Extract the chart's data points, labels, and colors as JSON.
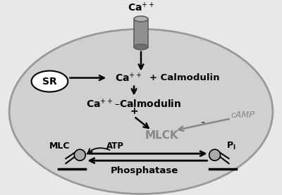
{
  "bg_color": "#e8e8e8",
  "cell_facecolor": "#d0d0d0",
  "cell_edgecolor": "#999999",
  "white": "#ffffff",
  "black": "#000000",
  "gray_dark": "#606060",
  "gray_mid": "#888888",
  "gray_light": "#aaaaaa",
  "cyl_face": "#909090",
  "cyl_top": "#b0b0b0",
  "cyl_bot": "#707070",
  "sr_label": "SR",
  "calmodulin_label": "+ Calmodulin",
  "mlck_label": "MLCK",
  "camp_label": "cAMP",
  "mlc_label": "MLC",
  "atp_label": "ATP",
  "phosphatase_label": "Phosphatase",
  "pi_label": "P",
  "plus_label": "+",
  "minus_label": "-"
}
